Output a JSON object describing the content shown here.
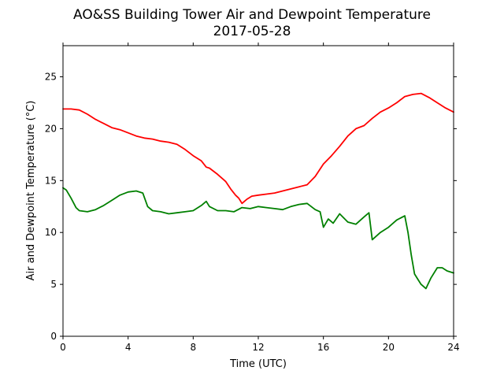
{
  "chart_data": {
    "type": "line",
    "title_line1": "AO&SS Building Tower Air and Dewpoint Temperature",
    "title_line2": "2017-05-28",
    "xlabel": "Time (UTC)",
    "ylabel": "Air and Dewpoint Temperature (°C)",
    "xlim": [
      0,
      24
    ],
    "ylim": [
      0,
      28
    ],
    "xticks": [
      0,
      4,
      8,
      12,
      16,
      20,
      24
    ],
    "yticks": [
      0,
      5,
      10,
      15,
      20,
      25
    ],
    "grid": false,
    "legend": "none",
    "series": [
      {
        "color": "#ff0000",
        "x": [
          0,
          0.5,
          1.0,
          1.5,
          2.0,
          2.5,
          3.0,
          3.5,
          4.0,
          4.5,
          5.0,
          5.5,
          6.0,
          6.5,
          7.0,
          7.5,
          8.0,
          8.5,
          8.8,
          9.0,
          9.5,
          10.0,
          10.3,
          10.6,
          10.8,
          11.0,
          11.3,
          11.6,
          12.0,
          12.5,
          13.0,
          13.5,
          14.0,
          14.5,
          15.0,
          15.5,
          16.0,
          16.5,
          17.0,
          17.5,
          18.0,
          18.5,
          19.0,
          19.5,
          20.0,
          20.5,
          21.0,
          21.5,
          22.0,
          22.5,
          23.0,
          23.5,
          24.0
        ],
        "values": [
          21.9,
          21.9,
          21.8,
          21.4,
          20.9,
          20.5,
          20.1,
          19.9,
          19.6,
          19.3,
          19.1,
          19.0,
          18.8,
          18.7,
          18.5,
          18.0,
          17.4,
          16.9,
          16.3,
          16.2,
          15.6,
          14.9,
          14.2,
          13.6,
          13.3,
          12.8,
          13.2,
          13.5,
          13.6,
          13.7,
          13.8,
          14.0,
          14.2,
          14.4,
          14.6,
          15.4,
          16.6,
          17.4,
          18.3,
          19.3,
          20.0,
          20.3,
          21.0,
          21.6,
          22.0,
          22.5,
          23.1,
          23.3,
          23.4,
          23.0,
          22.5,
          22.0,
          21.6
        ]
      },
      {
        "color": "#008000",
        "x": [
          0,
          0.2,
          0.5,
          0.8,
          1.0,
          1.5,
          2.0,
          2.5,
          3.0,
          3.5,
          4.0,
          4.5,
          4.9,
          5.2,
          5.5,
          6.0,
          6.5,
          7.0,
          7.5,
          8.0,
          8.5,
          8.8,
          9.0,
          9.5,
          10.0,
          10.5,
          11.0,
          11.5,
          12.0,
          12.5,
          13.0,
          13.5,
          14.0,
          14.5,
          15.0,
          15.5,
          15.8,
          16.0,
          16.3,
          16.6,
          17.0,
          17.5,
          18.0,
          18.5,
          18.8,
          19.0,
          19.5,
          20.0,
          20.5,
          21.0,
          21.2,
          21.4,
          21.6,
          21.8,
          22.0,
          22.3,
          22.6,
          23.0,
          23.3,
          23.6,
          24.0
        ],
        "values": [
          14.3,
          14.1,
          13.3,
          12.4,
          12.1,
          12.0,
          12.2,
          12.6,
          13.1,
          13.6,
          13.9,
          14.0,
          13.8,
          12.5,
          12.1,
          12.0,
          11.8,
          11.9,
          12.0,
          12.1,
          12.6,
          13.0,
          12.5,
          12.1,
          12.1,
          12.0,
          12.4,
          12.3,
          12.5,
          12.4,
          12.3,
          12.2,
          12.5,
          12.7,
          12.8,
          12.2,
          12.0,
          10.5,
          11.3,
          10.9,
          11.8,
          11.0,
          10.8,
          11.5,
          11.9,
          9.3,
          10.0,
          10.5,
          11.2,
          11.6,
          10.0,
          7.8,
          6.0,
          5.5,
          5.0,
          4.6,
          5.6,
          6.6,
          6.6,
          6.3,
          6.1
        ]
      }
    ]
  }
}
